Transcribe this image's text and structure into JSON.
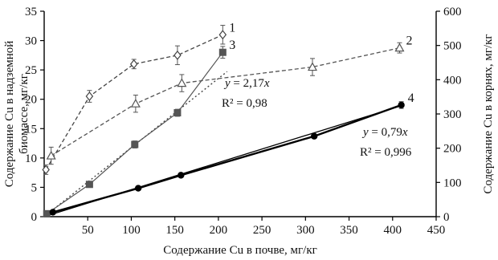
{
  "chart_data": {
    "type": "scatter",
    "x_axis": {
      "label": "Содержание Cu в почве, мг/кг",
      "range": [
        0,
        450
      ],
      "ticks": [
        "50",
        "100",
        "150",
        "200",
        "250",
        "300",
        "350",
        "400",
        "450"
      ],
      "tick_values": [
        50,
        100,
        150,
        200,
        250,
        300,
        350,
        400,
        450
      ]
    },
    "y_axis_left": {
      "label_line1": "Содержание Cu в надземной",
      "label_line2": "биомассе, мг/кг",
      "range": [
        0,
        35
      ],
      "ticks": [
        "0",
        "5",
        "10",
        "15",
        "20",
        "25",
        "30",
        "35"
      ],
      "tick_values": [
        0,
        5,
        10,
        15,
        20,
        25,
        30,
        35
      ]
    },
    "y_axis_right": {
      "label": "Содержание Cu в корнях, мг/кг",
      "range": [
        0,
        600
      ],
      "ticks": [
        "0",
        "100",
        "200",
        "300",
        "400",
        "500",
        "600"
      ],
      "tick_values": [
        0,
        100,
        200,
        300,
        400,
        500,
        600
      ]
    },
    "series": [
      {
        "id": "1",
        "axis": "left",
        "marker": "diamond-open",
        "line": "dashed",
        "color": "#444444",
        "points": [
          {
            "x": 2,
            "y": 8.0,
            "err": 0.8
          },
          {
            "x": 52,
            "y": 20.5,
            "err": 1.0
          },
          {
            "x": 103,
            "y": 26.0,
            "err": 0.8
          },
          {
            "x": 153,
            "y": 27.5,
            "err": 1.6
          },
          {
            "x": 205,
            "y": 31.0,
            "err": 1.6
          }
        ]
      },
      {
        "id": "2",
        "axis": "right",
        "marker": "triangle-open",
        "line": "dashed",
        "color": "#555555",
        "points": [
          {
            "x": 8,
            "y": 178,
            "err": 25
          },
          {
            "x": 105,
            "y": 330,
            "err": 25
          },
          {
            "x": 158,
            "y": 390,
            "err": 25
          },
          {
            "x": 308,
            "y": 437,
            "err": 25
          },
          {
            "x": 408,
            "y": 493,
            "err": 15
          }
        ]
      },
      {
        "id": "3",
        "axis": "left",
        "marker": "square-filled",
        "line": "solid-thin",
        "color": "#555555",
        "fit_line": "dotted",
        "points": [
          {
            "x": 3,
            "y": 0.5,
            "err": 0
          },
          {
            "x": 52,
            "y": 5.5,
            "err": 0
          },
          {
            "x": 104,
            "y": 12.3,
            "err": 0.6
          },
          {
            "x": 153,
            "y": 17.7,
            "err": 0.6
          },
          {
            "x": 205,
            "y": 28.0,
            "err": 1.0
          }
        ]
      },
      {
        "id": "4",
        "axis": "right",
        "marker": "circle-filled",
        "line": "solid-thick",
        "color": "#000000",
        "points": [
          {
            "x": 10,
            "y": 13,
            "err": 0
          },
          {
            "x": 108,
            "y": 83,
            "err": 0
          },
          {
            "x": 157,
            "y": 121,
            "err": 0
          },
          {
            "x": 310,
            "y": 235,
            "err": 0
          },
          {
            "x": 410,
            "y": 326,
            "err": 10
          }
        ]
      }
    ],
    "annotations": [
      {
        "series": "3",
        "equation_y": "y",
        "equation_rest": " = 2,17",
        "equation_var": "x",
        "r2_label": "R² = 0,98"
      },
      {
        "series": "4",
        "equation_y": "y",
        "equation_rest": " = 0,79",
        "equation_var": "x",
        "r2_label": "R² = 0,996"
      }
    ],
    "grid": false
  }
}
